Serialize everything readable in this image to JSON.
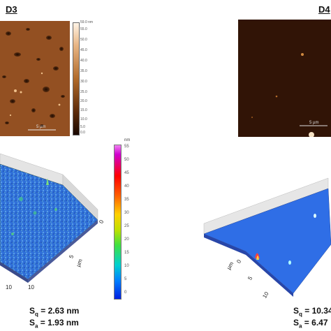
{
  "panels": {
    "d3": {
      "label": "D3",
      "scale_bar_text": "5 µm",
      "colorbar_ticks": [
        "59.0 nm",
        "55.0",
        "50.0",
        "45.0",
        "40.0",
        "35.0",
        "30.0",
        "25.0",
        "20.0",
        "15.0",
        "10.0",
        "5.0",
        "0.0"
      ],
      "colorbar_colors": {
        "top": "#fff4e6",
        "mid": "#b06a2a",
        "bottom": "#1a0800"
      },
      "surface_3d": {
        "axis_unit": "µm",
        "axis_ticks": [
          "0",
          "5",
          "10"
        ],
        "colorbar_unit": "nm",
        "colorbar_ticks": [
          "55",
          "50",
          "45",
          "40",
          "35",
          "30",
          "25",
          "20",
          "15",
          "10",
          "5",
          "0"
        ]
      },
      "roughness": {
        "sq_symbol": "S",
        "sq_sub": "q",
        "sq_value": " = 2.63 nm",
        "sa_symbol": "S",
        "sa_sub": "a",
        "sa_value": " = 1.93 nm"
      }
    },
    "d4": {
      "label": "D4",
      "scale_bar_text": "5 µm",
      "surface_3d": {
        "axis_unit": "µm",
        "axis_ticks": [
          "0",
          "5",
          "10"
        ]
      },
      "roughness": {
        "sq_symbol": "S",
        "sq_sub": "q",
        "sq_value": " = 10.34",
        "sa_symbol": "S",
        "sa_sub": "a",
        "sa_value": " = 6.47"
      }
    }
  }
}
